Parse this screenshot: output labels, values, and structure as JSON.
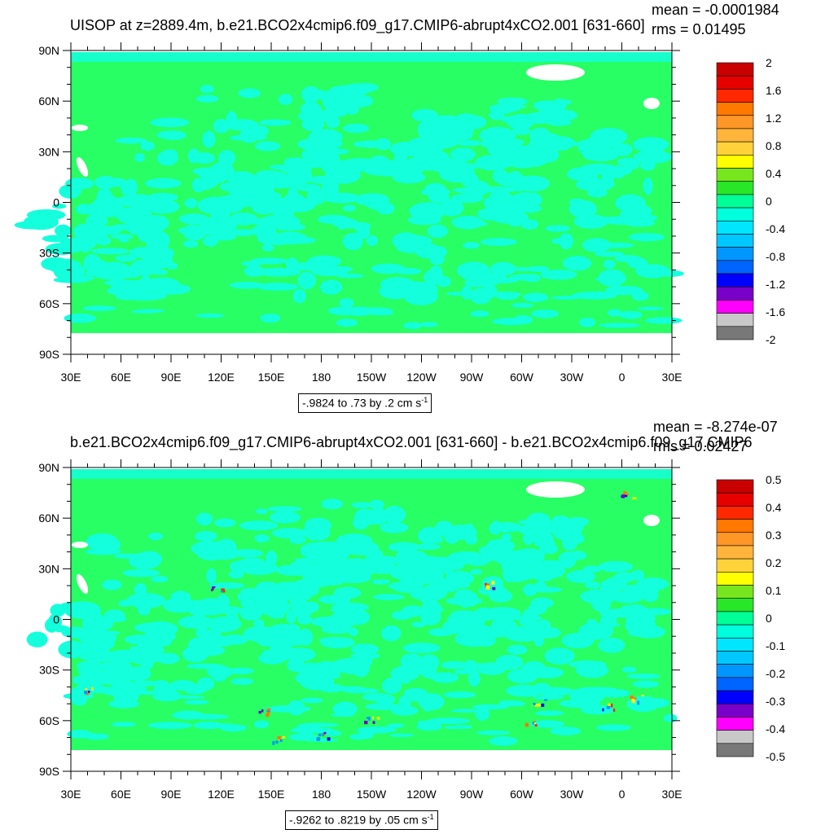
{
  "chart_data": [
    {
      "type": "heatmap",
      "title": "UISOP at z=2889.4m, b.e21.BCO2x4cmip6.f09_g17.CMIP6-abrupt4xCO2.001 [631-660]",
      "stats": {
        "mean": "mean = -0.0001984",
        "rms": "rms = 0.01495"
      },
      "x_ticks": [
        "30E",
        "60E",
        "90E",
        "120E",
        "150E",
        "180",
        "150W",
        "120W",
        "90W",
        "60W",
        "30W",
        "0",
        "30E"
      ],
      "y_ticks": [
        "90N",
        "60N",
        "30N",
        "0",
        "30S",
        "60S",
        "90S"
      ],
      "range_label": "-.9824 to .73 by .2 cm s",
      "range_sup": "-1",
      "colorbar_levels": [
        "2",
        "1.6",
        "1.2",
        "0.8",
        "0.4",
        "0",
        "-0.4",
        "-0.8",
        "-1.2",
        "-1.6",
        "-2"
      ],
      "colorbar_colors": [
        "#c80000",
        "#e60000",
        "#ff2800",
        "#ff7800",
        "#ff9628",
        "#ffb43c",
        "#ffd23c",
        "#ffff00",
        "#78e61e",
        "#28e628",
        "#00ff96",
        "#00ffdc",
        "#00e6ff",
        "#00c8ff",
        "#0096ff",
        "#0064ff",
        "#0000ff",
        "#7800c8",
        "#ff00ff",
        "#c8c8c8",
        "#787878"
      ],
      "dominant_colors": {
        "land_or_zero": "#28ff64",
        "neg_small": "#14ffdc"
      }
    },
    {
      "type": "heatmap",
      "title": "b.e21.BCO2x4cmip6.f09_g17.CMIP6-abrupt4xCO2.001 [631-660] - b.e21.BCO2x4cmip6.f09_g17.CMIP6",
      "stats": {
        "mean": "mean = -8.274e-07",
        "rms": "rms = 0.02427"
      },
      "x_ticks": [
        "30E",
        "60E",
        "90E",
        "120E",
        "150E",
        "180",
        "150W",
        "120W",
        "90W",
        "60W",
        "30W",
        "0",
        "30E"
      ],
      "y_ticks": [
        "90N",
        "60N",
        "30N",
        "0",
        "30S",
        "60S",
        "90S"
      ],
      "range_label": "-.9262 to .8219 by .05 cm s",
      "range_sup": "-1",
      "colorbar_levels": [
        "0.5",
        "0.4",
        "0.3",
        "0.2",
        "0.1",
        "0",
        "-0.1",
        "-0.2",
        "-0.3",
        "-0.4",
        "-0.5"
      ],
      "colorbar_colors": [
        "#c80000",
        "#e60000",
        "#ff2800",
        "#ff7800",
        "#ff9628",
        "#ffb43c",
        "#ffd23c",
        "#ffff00",
        "#78e61e",
        "#28e628",
        "#00ff96",
        "#00ffdc",
        "#00e6ff",
        "#00c8ff",
        "#0096ff",
        "#0064ff",
        "#0000ff",
        "#7800c8",
        "#ff00ff",
        "#c8c8c8",
        "#787878"
      ],
      "dominant_colors": {
        "land_or_zero": "#28ff64",
        "neg_small": "#14ffdc"
      }
    }
  ]
}
